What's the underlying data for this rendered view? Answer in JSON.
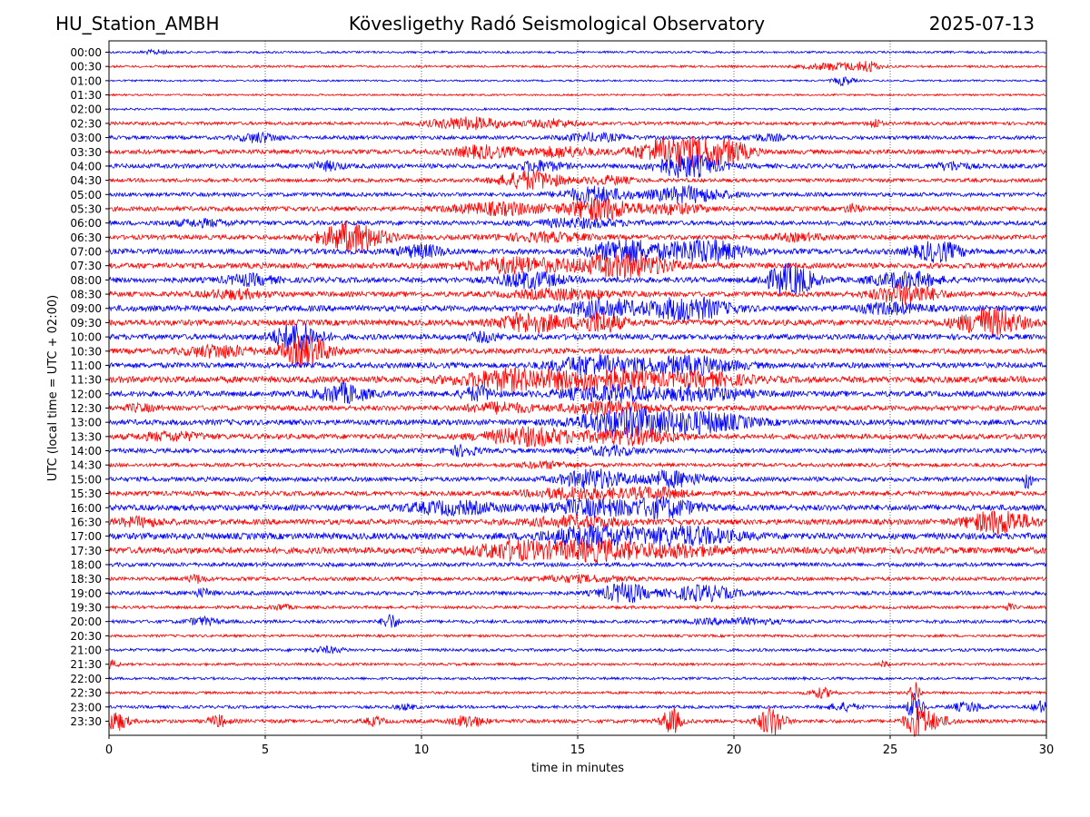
{
  "header": {
    "station": "HU_Station_AMBH",
    "observatory": "Kövesligethy Radó Seismological Observatory",
    "date": "2025-07-13"
  },
  "chart_data": {
    "type": "line",
    "chart_kind": "helicorder",
    "xlabel": "time in minutes",
    "ylabel": "UTC (local time = UTC + 02:00)",
    "xlim": [
      0,
      30
    ],
    "x_ticks": [
      0,
      5,
      10,
      15,
      20,
      25,
      30
    ],
    "vertical_grid": "dotted at 5-minute ticks",
    "colors": {
      "even_rows": "#0000ff",
      "odd_rows": "#ff0000",
      "grid": "#000000"
    },
    "rows": [
      {
        "label": "00:00",
        "color": "blue",
        "noise": 1.2,
        "events": [
          {
            "t": 1.5,
            "amp": 2,
            "dur": 0.8
          }
        ]
      },
      {
        "label": "00:30",
        "color": "red",
        "noise": 1.2,
        "events": [
          {
            "t": 23.3,
            "amp": 4,
            "dur": 2.0
          },
          {
            "t": 24.3,
            "amp": 5,
            "dur": 0.6
          }
        ]
      },
      {
        "label": "01:00",
        "color": "blue",
        "noise": 1.0,
        "events": [
          {
            "t": 23.5,
            "amp": 5,
            "dur": 0.6
          }
        ]
      },
      {
        "label": "01:30",
        "color": "red",
        "noise": 1.0,
        "events": []
      },
      {
        "label": "02:00",
        "color": "blue",
        "noise": 1.2,
        "events": []
      },
      {
        "label": "02:30",
        "color": "red",
        "noise": 1.8,
        "events": [
          {
            "t": 11.5,
            "amp": 6,
            "dur": 2.5
          },
          {
            "t": 14.2,
            "amp": 4,
            "dur": 1.5
          },
          {
            "t": 24.5,
            "amp": 5,
            "dur": 0.4
          }
        ]
      },
      {
        "label": "03:00",
        "color": "blue",
        "noise": 2.0,
        "events": [
          {
            "t": 4.8,
            "amp": 5,
            "dur": 1.2
          },
          {
            "t": 15.5,
            "amp": 4,
            "dur": 2.0
          },
          {
            "t": 21.0,
            "amp": 3,
            "dur": 1.5
          }
        ]
      },
      {
        "label": "03:30",
        "color": "red",
        "noise": 2.5,
        "events": [
          {
            "t": 12.0,
            "amp": 6,
            "dur": 2.0
          },
          {
            "t": 14.5,
            "amp": 5,
            "dur": 2.0
          },
          {
            "t": 18.2,
            "amp": 16,
            "dur": 2.5
          },
          {
            "t": 19.8,
            "amp": 10,
            "dur": 1.5
          }
        ]
      },
      {
        "label": "04:00",
        "color": "blue",
        "noise": 2.5,
        "events": [
          {
            "t": 7.0,
            "amp": 4,
            "dur": 1.0
          },
          {
            "t": 13.8,
            "amp": 5,
            "dur": 1.5
          },
          {
            "t": 18.5,
            "amp": 12,
            "dur": 2.0
          },
          {
            "t": 27.0,
            "amp": 4,
            "dur": 1.0
          }
        ]
      },
      {
        "label": "04:30",
        "color": "red",
        "noise": 2.0,
        "events": [
          {
            "t": 13.5,
            "amp": 10,
            "dur": 2.0
          },
          {
            "t": 16.0,
            "amp": 4,
            "dur": 1.5
          }
        ]
      },
      {
        "label": "05:00",
        "color": "blue",
        "noise": 2.2,
        "events": [
          {
            "t": 15.5,
            "amp": 8,
            "dur": 2.0
          },
          {
            "t": 18.5,
            "amp": 8,
            "dur": 2.5
          }
        ]
      },
      {
        "label": "05:30",
        "color": "red",
        "noise": 2.5,
        "events": [
          {
            "t": 12.5,
            "amp": 6,
            "dur": 3.0
          },
          {
            "t": 15.7,
            "amp": 12,
            "dur": 2.0
          },
          {
            "t": 18.0,
            "amp": 5,
            "dur": 2.0
          },
          {
            "t": 23.8,
            "amp": 4,
            "dur": 0.5
          }
        ]
      },
      {
        "label": "06:00",
        "color": "blue",
        "noise": 2.5,
        "events": [
          {
            "t": 3.0,
            "amp": 3,
            "dur": 2.0
          },
          {
            "t": 15.0,
            "amp": 4,
            "dur": 3.0
          }
        ]
      },
      {
        "label": "06:30",
        "color": "red",
        "noise": 2.5,
        "events": [
          {
            "t": 7.8,
            "amp": 16,
            "dur": 2.0
          },
          {
            "t": 14.0,
            "amp": 4,
            "dur": 3.0
          },
          {
            "t": 22.0,
            "amp": 3,
            "dur": 2.0
          }
        ]
      },
      {
        "label": "07:00",
        "color": "blue",
        "noise": 3.0,
        "events": [
          {
            "t": 10.0,
            "amp": 6,
            "dur": 1.5
          },
          {
            "t": 16.5,
            "amp": 13,
            "dur": 2.0
          },
          {
            "t": 19.0,
            "amp": 12,
            "dur": 2.5
          },
          {
            "t": 26.5,
            "amp": 10,
            "dur": 1.5
          }
        ]
      },
      {
        "label": "07:30",
        "color": "red",
        "noise": 3.0,
        "events": [
          {
            "t": 13.0,
            "amp": 8,
            "dur": 3.0
          },
          {
            "t": 16.5,
            "amp": 12,
            "dur": 3.0
          }
        ]
      },
      {
        "label": "08:00",
        "color": "blue",
        "noise": 3.0,
        "events": [
          {
            "t": 4.5,
            "amp": 5,
            "dur": 1.5
          },
          {
            "t": 13.5,
            "amp": 8,
            "dur": 2.0
          },
          {
            "t": 21.8,
            "amp": 16,
            "dur": 1.5
          },
          {
            "t": 25.5,
            "amp": 8,
            "dur": 2.0
          }
        ]
      },
      {
        "label": "08:30",
        "color": "red",
        "noise": 2.8,
        "events": [
          {
            "t": 4.0,
            "amp": 4,
            "dur": 2.0
          },
          {
            "t": 14.5,
            "amp": 5,
            "dur": 3.0
          },
          {
            "t": 25.5,
            "amp": 10,
            "dur": 2.0
          }
        ]
      },
      {
        "label": "09:00",
        "color": "blue",
        "noise": 3.2,
        "events": [
          {
            "t": 15.8,
            "amp": 10,
            "dur": 2.0
          },
          {
            "t": 18.5,
            "amp": 12,
            "dur": 2.5
          },
          {
            "t": 25.0,
            "amp": 5,
            "dur": 2.0
          }
        ]
      },
      {
        "label": "09:30",
        "color": "red",
        "noise": 3.2,
        "events": [
          {
            "t": 13.5,
            "amp": 10,
            "dur": 2.0
          },
          {
            "t": 15.7,
            "amp": 10,
            "dur": 1.5
          },
          {
            "t": 28.2,
            "amp": 14,
            "dur": 2.0
          }
        ]
      },
      {
        "label": "10:00",
        "color": "blue",
        "noise": 3.0,
        "events": [
          {
            "t": 6.0,
            "amp": 14,
            "dur": 1.5
          },
          {
            "t": 12.0,
            "amp": 4,
            "dur": 1.0
          }
        ]
      },
      {
        "label": "10:30",
        "color": "red",
        "noise": 3.0,
        "events": [
          {
            "t": 3.5,
            "amp": 6,
            "dur": 2.0
          },
          {
            "t": 6.3,
            "amp": 16,
            "dur": 1.5
          }
        ]
      },
      {
        "label": "11:00",
        "color": "blue",
        "noise": 3.0,
        "events": [
          {
            "t": 15.5,
            "amp": 10,
            "dur": 2.5
          },
          {
            "t": 18.5,
            "amp": 9,
            "dur": 3.0
          }
        ]
      },
      {
        "label": "11:30",
        "color": "red",
        "noise": 3.5,
        "events": [
          {
            "t": 13.0,
            "amp": 10,
            "dur": 3.5
          },
          {
            "t": 16.0,
            "amp": 10,
            "dur": 3.0
          },
          {
            "t": 19.0,
            "amp": 6,
            "dur": 3.0
          }
        ]
      },
      {
        "label": "12:00",
        "color": "blue",
        "noise": 3.0,
        "events": [
          {
            "t": 7.5,
            "amp": 10,
            "dur": 1.5
          },
          {
            "t": 11.8,
            "amp": 7,
            "dur": 1.0
          },
          {
            "t": 16.0,
            "amp": 8,
            "dur": 3.0
          },
          {
            "t": 19.0,
            "amp": 6,
            "dur": 3.0
          }
        ]
      },
      {
        "label": "12:30",
        "color": "red",
        "noise": 2.8,
        "events": [
          {
            "t": 1.0,
            "amp": 3,
            "dur": 1.0
          },
          {
            "t": 12.5,
            "amp": 5,
            "dur": 2.0
          },
          {
            "t": 16.0,
            "amp": 6,
            "dur": 3.0
          }
        ]
      },
      {
        "label": "13:00",
        "color": "blue",
        "noise": 3.0,
        "events": [
          {
            "t": 16.5,
            "amp": 14,
            "dur": 3.0
          },
          {
            "t": 19.0,
            "amp": 10,
            "dur": 3.0
          }
        ]
      },
      {
        "label": "13:30",
        "color": "red",
        "noise": 2.8,
        "events": [
          {
            "t": 2.0,
            "amp": 4,
            "dur": 2.0
          },
          {
            "t": 13.5,
            "amp": 9,
            "dur": 3.0
          },
          {
            "t": 16.8,
            "amp": 9,
            "dur": 2.5
          }
        ]
      },
      {
        "label": "14:00",
        "color": "blue",
        "noise": 2.5,
        "events": [
          {
            "t": 11.3,
            "amp": 5,
            "dur": 1.0
          },
          {
            "t": 16.0,
            "amp": 4,
            "dur": 2.0
          }
        ]
      },
      {
        "label": "14:30",
        "color": "red",
        "noise": 2.0,
        "events": [
          {
            "t": 14.0,
            "amp": 3,
            "dur": 2.0
          }
        ]
      },
      {
        "label": "15:00",
        "color": "blue",
        "noise": 2.5,
        "events": [
          {
            "t": 15.5,
            "amp": 10,
            "dur": 2.0
          },
          {
            "t": 18.0,
            "amp": 8,
            "dur": 2.0
          },
          {
            "t": 29.4,
            "amp": 10,
            "dur": 0.3
          }
        ]
      },
      {
        "label": "15:30",
        "color": "red",
        "noise": 2.5,
        "events": [
          {
            "t": 15.0,
            "amp": 6,
            "dur": 3.0
          },
          {
            "t": 17.5,
            "amp": 5,
            "dur": 2.0
          }
        ]
      },
      {
        "label": "16:00",
        "color": "blue",
        "noise": 3.2,
        "events": [
          {
            "t": 11.0,
            "amp": 6,
            "dur": 3.0
          },
          {
            "t": 15.5,
            "amp": 8,
            "dur": 3.0
          },
          {
            "t": 17.8,
            "amp": 9,
            "dur": 2.0
          }
        ]
      },
      {
        "label": "16:30",
        "color": "red",
        "noise": 3.0,
        "events": [
          {
            "t": 1.0,
            "amp": 4,
            "dur": 1.5
          },
          {
            "t": 15.0,
            "amp": 5,
            "dur": 3.0
          },
          {
            "t": 28.5,
            "amp": 12,
            "dur": 2.0
          }
        ]
      },
      {
        "label": "17:00",
        "color": "blue",
        "noise": 3.5,
        "events": [
          {
            "t": 15.5,
            "amp": 10,
            "dur": 3.0
          },
          {
            "t": 18.5,
            "amp": 9,
            "dur": 3.0
          }
        ]
      },
      {
        "label": "17:30",
        "color": "red",
        "noise": 3.5,
        "events": [
          {
            "t": 13.0,
            "amp": 9,
            "dur": 2.5
          },
          {
            "t": 15.5,
            "amp": 10,
            "dur": 2.5
          },
          {
            "t": 18.0,
            "amp": 6,
            "dur": 3.0
          }
        ]
      },
      {
        "label": "18:00",
        "color": "blue",
        "noise": 2.2,
        "events": []
      },
      {
        "label": "18:30",
        "color": "red",
        "noise": 2.0,
        "events": [
          {
            "t": 2.8,
            "amp": 4,
            "dur": 0.6
          },
          {
            "t": 15.0,
            "amp": 3,
            "dur": 3.0
          }
        ]
      },
      {
        "label": "19:00",
        "color": "blue",
        "noise": 2.2,
        "events": [
          {
            "t": 3.0,
            "amp": 4,
            "dur": 0.6
          },
          {
            "t": 16.5,
            "amp": 10,
            "dur": 1.5
          },
          {
            "t": 19.0,
            "amp": 8,
            "dur": 2.0
          }
        ]
      },
      {
        "label": "19:30",
        "color": "red",
        "noise": 1.6,
        "events": [
          {
            "t": 5.5,
            "amp": 3,
            "dur": 0.6
          },
          {
            "t": 28.8,
            "amp": 3,
            "dur": 0.4
          }
        ]
      },
      {
        "label": "20:00",
        "color": "blue",
        "noise": 1.8,
        "events": [
          {
            "t": 3.0,
            "amp": 4,
            "dur": 1.0
          },
          {
            "t": 9.0,
            "amp": 8,
            "dur": 0.5
          },
          {
            "t": 20.0,
            "amp": 3,
            "dur": 3.0
          }
        ]
      },
      {
        "label": "20:30",
        "color": "red",
        "noise": 1.4,
        "events": []
      },
      {
        "label": "21:00",
        "color": "blue",
        "noise": 1.6,
        "events": [
          {
            "t": 7.0,
            "amp": 3,
            "dur": 1.0
          }
        ]
      },
      {
        "label": "21:30",
        "color": "red",
        "noise": 1.4,
        "events": [
          {
            "t": 0.1,
            "amp": 4,
            "dur": 0.4
          },
          {
            "t": 24.8,
            "amp": 3,
            "dur": 0.3
          }
        ]
      },
      {
        "label": "22:00",
        "color": "blue",
        "noise": 1.4,
        "events": []
      },
      {
        "label": "22:30",
        "color": "red",
        "noise": 1.4,
        "events": [
          {
            "t": 22.8,
            "amp": 5,
            "dur": 0.8
          },
          {
            "t": 25.8,
            "amp": 14,
            "dur": 0.3
          }
        ]
      },
      {
        "label": "23:00",
        "color": "blue",
        "noise": 1.6,
        "events": [
          {
            "t": 9.5,
            "amp": 3,
            "dur": 0.6
          },
          {
            "t": 23.5,
            "amp": 4,
            "dur": 1.0
          },
          {
            "t": 25.8,
            "amp": 14,
            "dur": 0.5
          },
          {
            "t": 27.5,
            "amp": 5,
            "dur": 1.0
          },
          {
            "t": 29.8,
            "amp": 6,
            "dur": 0.5
          }
        ]
      },
      {
        "label": "23:30",
        "color": "red",
        "noise": 2.0,
        "events": [
          {
            "t": 0.2,
            "amp": 10,
            "dur": 0.8
          },
          {
            "t": 3.5,
            "amp": 6,
            "dur": 0.6
          },
          {
            "t": 8.5,
            "amp": 4,
            "dur": 0.6
          },
          {
            "t": 11.5,
            "amp": 6,
            "dur": 1.0
          },
          {
            "t": 18.0,
            "amp": 14,
            "dur": 0.6
          },
          {
            "t": 21.2,
            "amp": 16,
            "dur": 0.8
          },
          {
            "t": 25.9,
            "amp": 16,
            "dur": 0.8
          },
          {
            "t": 26.5,
            "amp": 5,
            "dur": 1.0
          }
        ]
      }
    ]
  }
}
